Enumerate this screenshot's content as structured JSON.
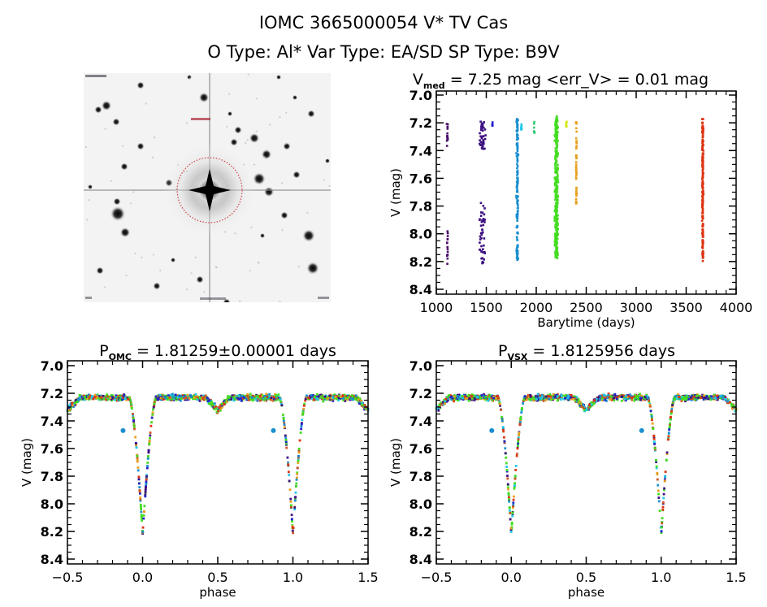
{
  "header": {
    "title_line1": "IOMC 3665000054    V* TV Cas",
    "title_line2": "O Type: Al*  Var Type: EA/SD  SP Type: B9V"
  },
  "finder_chart": {
    "description": "grayscale star field image centered on target with red dashed circle",
    "circle_color": "#cc2222"
  },
  "chart_data": [
    {
      "id": "lightcurve",
      "type": "scatter",
      "title_main": "V",
      "title_sub": "med",
      "title_rest": " = 7.25 mag <err_V> = 0.01 mag",
      "xlabel": "Barytime (days)",
      "ylabel": "V (mag)",
      "xlim": [
        1000,
        4000
      ],
      "ylim": [
        8.4,
        7.0
      ],
      "y_inverted": true,
      "xticks": [
        "1000",
        "1500",
        "2000",
        "2500",
        "3000",
        "3500",
        "4000"
      ],
      "xtick_values": [
        1000,
        1500,
        2000,
        2500,
        3000,
        3500,
        4000
      ],
      "yticks": [
        "7.0",
        "7.2",
        "7.4",
        "7.6",
        "7.8",
        "8.0",
        "8.2",
        "8.4"
      ],
      "ytick_values": [
        7.0,
        7.2,
        7.4,
        7.6,
        7.8,
        8.0,
        8.2,
        8.4
      ],
      "series": [
        {
          "name": "epoch-1",
          "color": "#4b0f6b",
          "x_center": 1110,
          "x_spread": 8,
          "y_ranges": [
            [
              7.19,
              7.37
            ],
            [
              7.97,
              8.24
            ]
          ],
          "n": 30
        },
        {
          "name": "epoch-2",
          "color": "#3d1080",
          "x_center": 1460,
          "x_spread": 40,
          "y_ranges": [
            [
              7.19,
              7.39
            ],
            [
              7.77,
              8.22
            ]
          ],
          "n": 90
        },
        {
          "name": "epoch-3",
          "color": "#2222cc",
          "x_center": 1560,
          "x_spread": 6,
          "y_ranges": [
            [
              7.19,
              7.22
            ]
          ],
          "n": 6
        },
        {
          "name": "epoch-4",
          "color": "#1a8fcf",
          "x_center": 1810,
          "x_spread": 12,
          "y_ranges": [
            [
              7.17,
              8.21
            ]
          ],
          "n": 140
        },
        {
          "name": "epoch-5",
          "color": "#22c8e8",
          "x_center": 1850,
          "x_spread": 6,
          "y_ranges": [
            [
              7.2,
              7.26
            ]
          ],
          "n": 8
        },
        {
          "name": "epoch-6",
          "color": "#33cc77",
          "x_center": 1980,
          "x_spread": 5,
          "y_ranges": [
            [
              7.19,
              7.28
            ]
          ],
          "n": 8
        },
        {
          "name": "epoch-7",
          "color": "#44dd22",
          "x_center": 2200,
          "x_spread": 22,
          "y_ranges": [
            [
              7.15,
              8.18
            ]
          ],
          "n": 340
        },
        {
          "name": "epoch-8",
          "color": "#d8e81a",
          "x_center": 2300,
          "x_spread": 6,
          "y_ranges": [
            [
              7.19,
              7.23
            ]
          ],
          "n": 8
        },
        {
          "name": "epoch-9",
          "color": "#e8a020",
          "x_center": 2400,
          "x_spread": 6,
          "y_ranges": [
            [
              7.19,
              7.8
            ]
          ],
          "n": 50
        },
        {
          "name": "epoch-10",
          "color": "#dd3311",
          "x_center": 3665,
          "x_spread": 9,
          "y_ranges": [
            [
              7.17,
              8.2
            ]
          ],
          "n": 180
        }
      ]
    },
    {
      "id": "phase-omc",
      "type": "scatter",
      "title_main": "P",
      "title_sub": "OMC",
      "title_rest": " = 1.81259±0.00001 days",
      "xlabel": "phase",
      "ylabel": "V (mag)",
      "xlim": [
        -0.5,
        1.5
      ],
      "ylim": [
        8.4,
        7.0
      ],
      "y_inverted": true,
      "xticks": [
        "−0.5",
        "0.0",
        "0.5",
        "1.0",
        "1.5"
      ],
      "xtick_values": [
        -0.5,
        0.0,
        0.5,
        1.0,
        1.5
      ],
      "yticks": [
        "7.0",
        "7.2",
        "7.4",
        "7.6",
        "7.8",
        "8.0",
        "8.2",
        "8.4"
      ],
      "ytick_values": [
        7.0,
        7.2,
        7.4,
        7.6,
        7.8,
        8.0,
        8.2,
        8.4
      ],
      "light_curve": {
        "baseline_mag": 7.23,
        "primary_min_phase": 0.0,
        "primary_min_mag": 8.22,
        "primary_halfwidth": 0.09,
        "secondary_min_phase": 0.5,
        "secondary_depth": 0.09,
        "scatter": 0.03,
        "period_days": 1.81259
      },
      "colors": [
        "#3d1080",
        "#2222cc",
        "#1a8fcf",
        "#22c8e8",
        "#44dd22",
        "#44dd22",
        "#44dd22",
        "#e8a020",
        "#dd3311",
        "#cc5522"
      ],
      "outliers": [
        {
          "phase": -0.13,
          "mag": 7.47,
          "color": "#1a8fcf"
        },
        {
          "phase": 0.87,
          "mag": 7.47,
          "color": "#1a8fcf"
        }
      ]
    },
    {
      "id": "phase-vsx",
      "type": "scatter",
      "title_main": "P",
      "title_sub": "VSX",
      "title_rest": " = 1.8125956 days",
      "xlabel": "phase",
      "ylabel": "V (mag)",
      "xlim": [
        -0.5,
        1.5
      ],
      "ylim": [
        8.4,
        7.0
      ],
      "y_inverted": true,
      "xticks": [
        "−0.5",
        "0.0",
        "0.5",
        "1.0",
        "1.5"
      ],
      "xtick_values": [
        -0.5,
        0.0,
        0.5,
        1.0,
        1.5
      ],
      "yticks": [
        "7.0",
        "7.2",
        "7.4",
        "7.6",
        "7.8",
        "8.0",
        "8.2",
        "8.4"
      ],
      "ytick_values": [
        7.0,
        7.2,
        7.4,
        7.6,
        7.8,
        8.0,
        8.2,
        8.4
      ],
      "light_curve": {
        "baseline_mag": 7.23,
        "primary_min_phase": 0.0,
        "primary_min_mag": 8.22,
        "primary_halfwidth": 0.09,
        "secondary_min_phase": 0.5,
        "secondary_depth": 0.09,
        "scatter": 0.03,
        "period_days": 1.8125956
      },
      "colors": [
        "#3d1080",
        "#2222cc",
        "#1a8fcf",
        "#22c8e8",
        "#44dd22",
        "#44dd22",
        "#44dd22",
        "#e8a020",
        "#dd3311",
        "#cc5522"
      ],
      "outliers": [
        {
          "phase": -0.13,
          "mag": 7.47,
          "color": "#1a8fcf"
        },
        {
          "phase": 0.87,
          "mag": 7.47,
          "color": "#1a8fcf"
        }
      ]
    }
  ]
}
